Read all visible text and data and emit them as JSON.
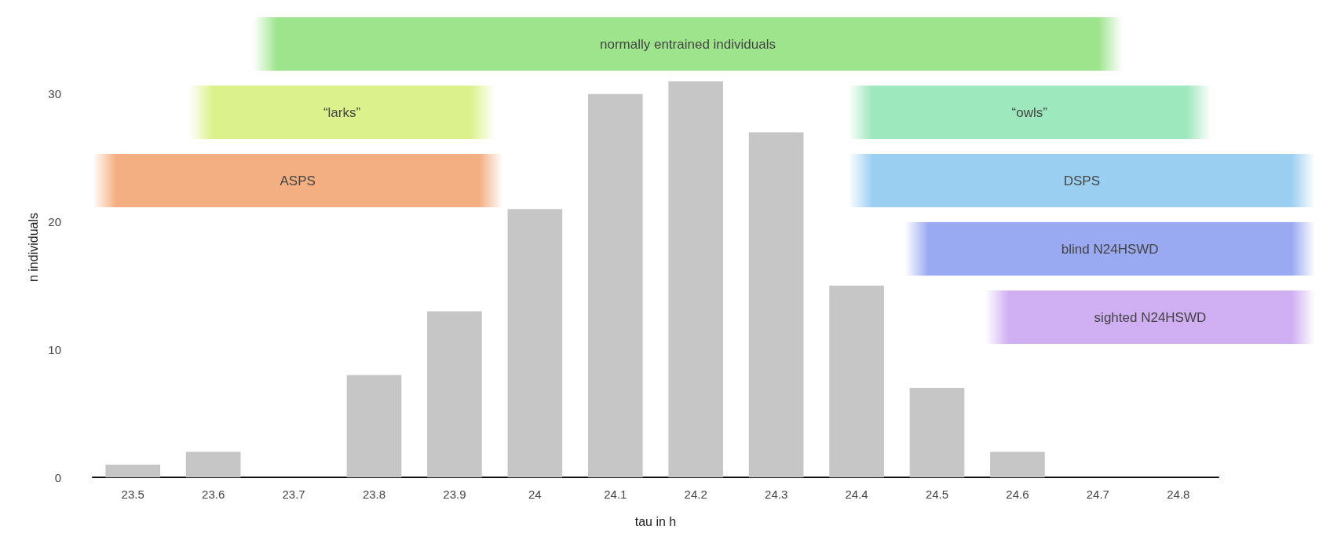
{
  "chart_data": {
    "type": "bar",
    "xlabel": "tau in h",
    "ylabel": "n individuals",
    "x": [
      23.5,
      23.6,
      23.7,
      23.8,
      23.9,
      24,
      24.1,
      24.2,
      24.3,
      24.4,
      24.5,
      24.6,
      24.7,
      24.8
    ],
    "values": [
      1,
      2,
      0,
      8,
      13,
      21,
      30,
      31,
      27,
      15,
      7,
      2,
      0,
      0
    ],
    "color": "#c6c6c6",
    "xlim": [
      23.45,
      24.85
    ],
    "xticks": [
      23.5,
      23.6,
      23.7,
      23.8,
      23.9,
      24,
      24.1,
      24.2,
      24.3,
      24.4,
      24.5,
      24.6,
      24.7,
      24.8
    ],
    "ylim": [
      0,
      36
    ],
    "yticks": [
      0,
      10,
      20,
      30
    ],
    "bands": [
      {
        "axis": "x",
        "from": 23.65,
        "to": 24.73,
        "label": "normally entrained individuals",
        "color": "#8fe07a"
      },
      {
        "axis": "x",
        "from": 23.57,
        "to": 23.95,
        "label": "“larks”",
        "color": "#d6f07a"
      },
      {
        "axis": "x",
        "from": 24.39,
        "to": 24.84,
        "label": "“owls”",
        "color": "#8fe4b4"
      },
      {
        "axis": "x",
        "from": 23.45,
        "to": 23.96,
        "label": "ASPS",
        "color": "#f2a26e"
      },
      {
        "axis": "x",
        "from": 24.39,
        "to": 24.97,
        "label": "DSPS",
        "color": "#8cc8f0"
      },
      {
        "axis": "x",
        "from": 24.46,
        "to": 24.97,
        "label": "blind N24HSWD",
        "color": "#8a9cf0"
      },
      {
        "axis": "x",
        "from": 24.56,
        "to": 24.97,
        "label": "sighted N24HSWD",
        "color": "#c8a2f0"
      }
    ],
    "grid": false
  }
}
